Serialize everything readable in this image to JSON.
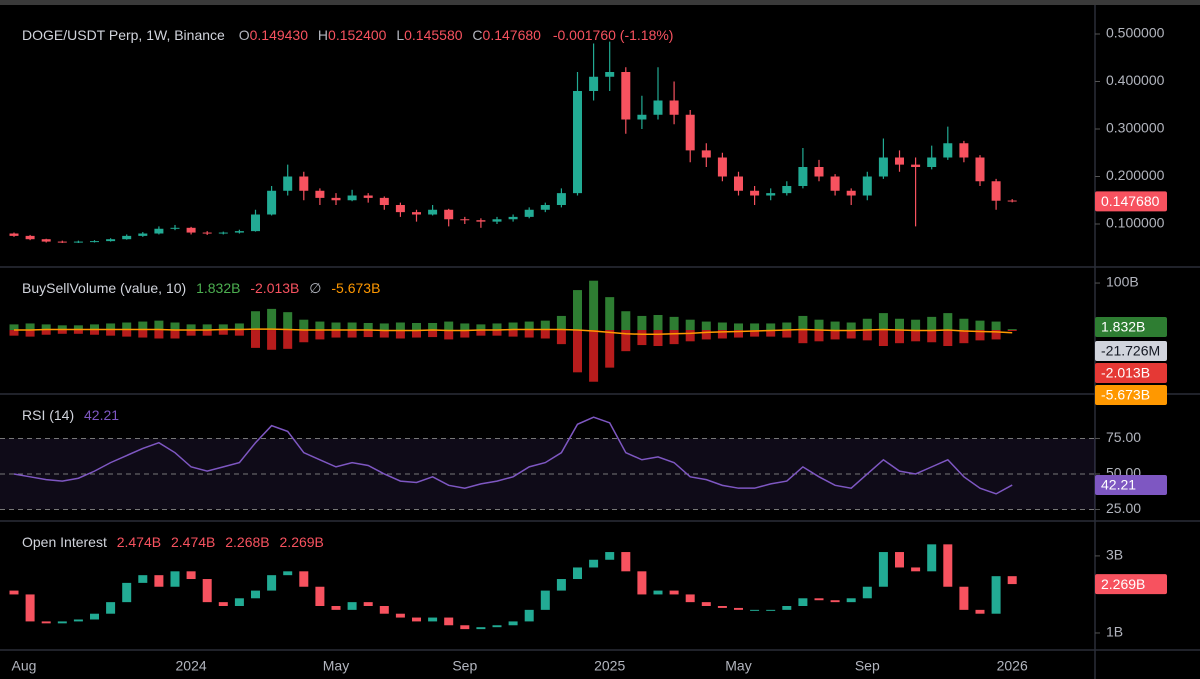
{
  "chart_data": [
    {
      "type": "candlestick",
      "title": "DOGE/USDT Perp, 1W, Binance",
      "ohlc_letters": [
        "O",
        "H",
        "L",
        "C"
      ],
      "header_values": [
        "0.149430",
        "0.152400",
        "0.145580",
        "0.147680"
      ],
      "change": "-0.001760 (-1.18%)",
      "up_color": "#22ab94",
      "down_color": "#f7525f",
      "ylim": [
        0.0137,
        0.54
      ],
      "yticks": [
        {
          "value": 0.1,
          "label": "0.100000"
        },
        {
          "value": 0.2,
          "label": "0.200000"
        },
        {
          "value": 0.3,
          "label": "0.300000"
        },
        {
          "value": 0.4,
          "label": "0.400000"
        },
        {
          "value": 0.5,
          "label": "0.500000"
        }
      ],
      "categories": [
        "Aug",
        null,
        null,
        null,
        null,
        null,
        null,
        null,
        null,
        null,
        null,
        "2024",
        null,
        null,
        null,
        null,
        null,
        null,
        null,
        null,
        "May",
        null,
        null,
        null,
        null,
        null,
        null,
        null,
        "Sep",
        null,
        null,
        null,
        null,
        null,
        null,
        null,
        null,
        "2025",
        null,
        null,
        null,
        null,
        null,
        null,
        null,
        "May",
        null,
        null,
        null,
        null,
        null,
        null,
        null,
        "Sep",
        null,
        null,
        null,
        null,
        null,
        null,
        null,
        null,
        "2026"
      ],
      "candles": [
        [
          0.08,
          0.082,
          0.073,
          0.075
        ],
        [
          0.075,
          0.077,
          0.066,
          0.068
        ],
        [
          0.068,
          0.069,
          0.061,
          0.063
        ],
        [
          0.063,
          0.065,
          0.06,
          0.062
        ],
        [
          0.062,
          0.065,
          0.06,
          0.063
        ],
        [
          0.063,
          0.066,
          0.061,
          0.064
        ],
        [
          0.064,
          0.07,
          0.063,
          0.068
        ],
        [
          0.068,
          0.078,
          0.067,
          0.075
        ],
        [
          0.075,
          0.083,
          0.073,
          0.08
        ],
        [
          0.08,
          0.095,
          0.078,
          0.09
        ],
        [
          0.09,
          0.098,
          0.087,
          0.092
        ],
        [
          0.092,
          0.094,
          0.078,
          0.082
        ],
        [
          0.082,
          0.085,
          0.077,
          0.08
        ],
        [
          0.08,
          0.084,
          0.078,
          0.082
        ],
        [
          0.082,
          0.088,
          0.08,
          0.085
        ],
        [
          0.085,
          0.13,
          0.084,
          0.12
        ],
        [
          0.12,
          0.18,
          0.118,
          0.17
        ],
        [
          0.17,
          0.225,
          0.16,
          0.2
        ],
        [
          0.2,
          0.21,
          0.15,
          0.17
        ],
        [
          0.17,
          0.175,
          0.14,
          0.155
        ],
        [
          0.155,
          0.165,
          0.14,
          0.15
        ],
        [
          0.15,
          0.172,
          0.148,
          0.16
        ],
        [
          0.16,
          0.165,
          0.145,
          0.155
        ],
        [
          0.155,
          0.158,
          0.13,
          0.14
        ],
        [
          0.14,
          0.145,
          0.115,
          0.125
        ],
        [
          0.125,
          0.13,
          0.105,
          0.12
        ],
        [
          0.12,
          0.14,
          0.118,
          0.13
        ],
        [
          0.13,
          0.132,
          0.095,
          0.11
        ],
        [
          0.11,
          0.115,
          0.1,
          0.108
        ],
        [
          0.108,
          0.112,
          0.092,
          0.105
        ],
        [
          0.105,
          0.115,
          0.1,
          0.11
        ],
        [
          0.11,
          0.12,
          0.105,
          0.115
        ],
        [
          0.115,
          0.135,
          0.112,
          0.13
        ],
        [
          0.13,
          0.145,
          0.125,
          0.14
        ],
        [
          0.14,
          0.175,
          0.135,
          0.165
        ],
        [
          0.165,
          0.42,
          0.16,
          0.38
        ],
        [
          0.38,
          0.48,
          0.36,
          0.41
        ],
        [
          0.41,
          0.484,
          0.38,
          0.42
        ],
        [
          0.42,
          0.43,
          0.29,
          0.32
        ],
        [
          0.32,
          0.37,
          0.3,
          0.33
        ],
        [
          0.33,
          0.43,
          0.32,
          0.36
        ],
        [
          0.36,
          0.4,
          0.31,
          0.33
        ],
        [
          0.33,
          0.34,
          0.23,
          0.255
        ],
        [
          0.255,
          0.27,
          0.22,
          0.24
        ],
        [
          0.24,
          0.25,
          0.19,
          0.2
        ],
        [
          0.2,
          0.21,
          0.16,
          0.17
        ],
        [
          0.17,
          0.18,
          0.14,
          0.16
        ],
        [
          0.16,
          0.175,
          0.15,
          0.165
        ],
        [
          0.165,
          0.19,
          0.16,
          0.18
        ],
        [
          0.18,
          0.26,
          0.175,
          0.22
        ],
        [
          0.22,
          0.235,
          0.19,
          0.2
        ],
        [
          0.2,
          0.205,
          0.16,
          0.17
        ],
        [
          0.17,
          0.175,
          0.14,
          0.16
        ],
        [
          0.16,
          0.21,
          0.15,
          0.2
        ],
        [
          0.2,
          0.28,
          0.195,
          0.24
        ],
        [
          0.24,
          0.255,
          0.21,
          0.225
        ],
        [
          0.225,
          0.24,
          0.095,
          0.22
        ],
        [
          0.22,
          0.265,
          0.215,
          0.24
        ],
        [
          0.24,
          0.305,
          0.235,
          0.27
        ],
        [
          0.27,
          0.275,
          0.23,
          0.24
        ],
        [
          0.24,
          0.245,
          0.18,
          0.19
        ],
        [
          0.19,
          0.195,
          0.13,
          0.149
        ],
        [
          0.14943,
          0.1524,
          0.14558,
          0.14768
        ]
      ]
    },
    {
      "type": "bar",
      "title": "BuySellVolume (value, 10)",
      "readout": [
        "1.832B",
        "-2.013B",
        "-5.673B"
      ],
      "separator": "∅",
      "delta_tag": "-21.726M",
      "ylim": [
        -134,
        132
      ],
      "yticks": [
        {
          "value": 100,
          "label": "100B"
        }
      ],
      "series": [
        {
          "type": "bar",
          "color": "#2e7d32",
          "values": [
            12,
            14,
            12,
            10,
            10,
            12,
            14,
            16,
            18,
            20,
            16,
            12,
            12,
            12,
            14,
            40,
            45,
            38,
            22,
            18,
            16,
            16,
            15,
            14,
            16,
            15,
            15,
            18,
            14,
            12,
            14,
            16,
            18,
            20,
            30,
            85,
            105,
            70,
            40,
            30,
            32,
            28,
            22,
            18,
            16,
            14,
            14,
            14,
            16,
            30,
            22,
            18,
            16,
            24,
            36,
            24,
            22,
            28,
            36,
            24,
            20,
            18,
            1.832
          ]
        },
        {
          "type": "bar",
          "color": "#b71c1c",
          "values": [
            -12,
            -14,
            -10,
            -8,
            -8,
            -10,
            -12,
            -14,
            -16,
            -18,
            -18,
            -12,
            -12,
            -10,
            -12,
            -38,
            -42,
            -40,
            -26,
            -20,
            -16,
            -16,
            -15,
            -16,
            -18,
            -16,
            -15,
            -20,
            -16,
            -12,
            -12,
            -14,
            -16,
            -18,
            -30,
            -90,
            -110,
            -80,
            -45,
            -32,
            -34,
            -30,
            -24,
            -20,
            -18,
            -16,
            -14,
            -14,
            -16,
            -28,
            -24,
            -20,
            -18,
            -22,
            -34,
            -28,
            -24,
            -26,
            -34,
            -28,
            -22,
            -20,
            -2.013
          ]
        },
        {
          "type": "line",
          "color": "#ff9800",
          "values": [
            0,
            0,
            1,
            1,
            1,
            1,
            1,
            1,
            1,
            1,
            0,
            0,
            0,
            1,
            1,
            2,
            2,
            1,
            0,
            0,
            0,
            0,
            0,
            -1,
            -1,
            -1,
            0,
            -1,
            -1,
            0,
            0,
            1,
            1,
            1,
            1,
            0,
            -2,
            -5,
            -8,
            -9,
            -9,
            -8,
            -7,
            -5,
            -4,
            -3,
            -2,
            -1,
            0,
            1,
            0,
            -1,
            -1,
            0,
            1,
            0,
            -1,
            -1,
            0,
            -2,
            -3,
            -4,
            -5.673
          ]
        }
      ]
    },
    {
      "type": "line",
      "title": "RSI (14)",
      "color": "#7e57c2",
      "grid": "dashed",
      "band": true,
      "ylim": [
        17.6,
        105.6
      ],
      "yticks": [
        {
          "value": 25,
          "label": "25.00"
        },
        {
          "value": 50,
          "label": "50.00"
        },
        {
          "value": 75,
          "label": "75.00"
        }
      ],
      "values": [
        50,
        48,
        46,
        45,
        47,
        52,
        58,
        63,
        68,
        72,
        65,
        55,
        52,
        55,
        58,
        72,
        84,
        80,
        65,
        60,
        55,
        58,
        56,
        50,
        45,
        44,
        48,
        42,
        40,
        43,
        45,
        48,
        55,
        58,
        65,
        85,
        90,
        86,
        65,
        60,
        62,
        58,
        48,
        46,
        42,
        40,
        40,
        43,
        45,
        55,
        48,
        42,
        40,
        50,
        60,
        52,
        50,
        55,
        60,
        48,
        40,
        36,
        42.21
      ]
    },
    {
      "type": "candlestick",
      "title": "Open Interest",
      "readout": [
        "2.474B",
        "2.474B",
        "2.268B",
        "2.269B"
      ],
      "up_color": "#22ab94",
      "down_color": "#f7525f",
      "ylim": [
        0.61,
        3.88
      ],
      "yticks": [
        {
          "value": 1,
          "label": "1B"
        },
        {
          "value": 3,
          "label": "3B"
        }
      ],
      "candles": [
        [
          2.1,
          2.0
        ],
        [
          2.0,
          1.3
        ],
        [
          1.3,
          1.25
        ],
        [
          1.25,
          1.3
        ],
        [
          1.3,
          1.35
        ],
        [
          1.35,
          1.5
        ],
        [
          1.5,
          1.8
        ],
        [
          1.8,
          2.3
        ],
        [
          2.3,
          2.5
        ],
        [
          2.5,
          2.2
        ],
        [
          2.2,
          2.6
        ],
        [
          2.6,
          2.4
        ],
        [
          2.4,
          1.8
        ],
        [
          1.8,
          1.7
        ],
        [
          1.7,
          1.9
        ],
        [
          1.9,
          2.1
        ],
        [
          2.1,
          2.5
        ],
        [
          2.5,
          2.6
        ],
        [
          2.6,
          2.2
        ],
        [
          2.2,
          1.7
        ],
        [
          1.7,
          1.6
        ],
        [
          1.6,
          1.8
        ],
        [
          1.8,
          1.7
        ],
        [
          1.7,
          1.5
        ],
        [
          1.5,
          1.4
        ],
        [
          1.4,
          1.3
        ],
        [
          1.3,
          1.4
        ],
        [
          1.4,
          1.2
        ],
        [
          1.2,
          1.1
        ],
        [
          1.1,
          1.15
        ],
        [
          1.15,
          1.2
        ],
        [
          1.2,
          1.3
        ],
        [
          1.3,
          1.6
        ],
        [
          1.6,
          2.1
        ],
        [
          2.1,
          2.4
        ],
        [
          2.4,
          2.7
        ],
        [
          2.7,
          2.9
        ],
        [
          2.9,
          3.1
        ],
        [
          3.1,
          2.6
        ],
        [
          2.6,
          2.0
        ],
        [
          2.0,
          2.1
        ],
        [
          2.1,
          2.0
        ],
        [
          2.0,
          1.8
        ],
        [
          1.8,
          1.7
        ],
        [
          1.7,
          1.65
        ],
        [
          1.65,
          1.6
        ],
        [
          1.6,
          1.6
        ],
        [
          1.6,
          1.6
        ],
        [
          1.6,
          1.7
        ],
        [
          1.7,
          1.9
        ],
        [
          1.9,
          1.85
        ],
        [
          1.85,
          1.8
        ],
        [
          1.8,
          1.9
        ],
        [
          1.9,
          2.2
        ],
        [
          2.2,
          3.1
        ],
        [
          3.1,
          2.7
        ],
        [
          2.7,
          2.6
        ],
        [
          2.6,
          3.3
        ],
        [
          3.3,
          2.2
        ],
        [
          2.2,
          1.6
        ],
        [
          1.6,
          1.5
        ],
        [
          1.5,
          2.474
        ],
        [
          2.474,
          2.269
        ]
      ]
    }
  ]
}
